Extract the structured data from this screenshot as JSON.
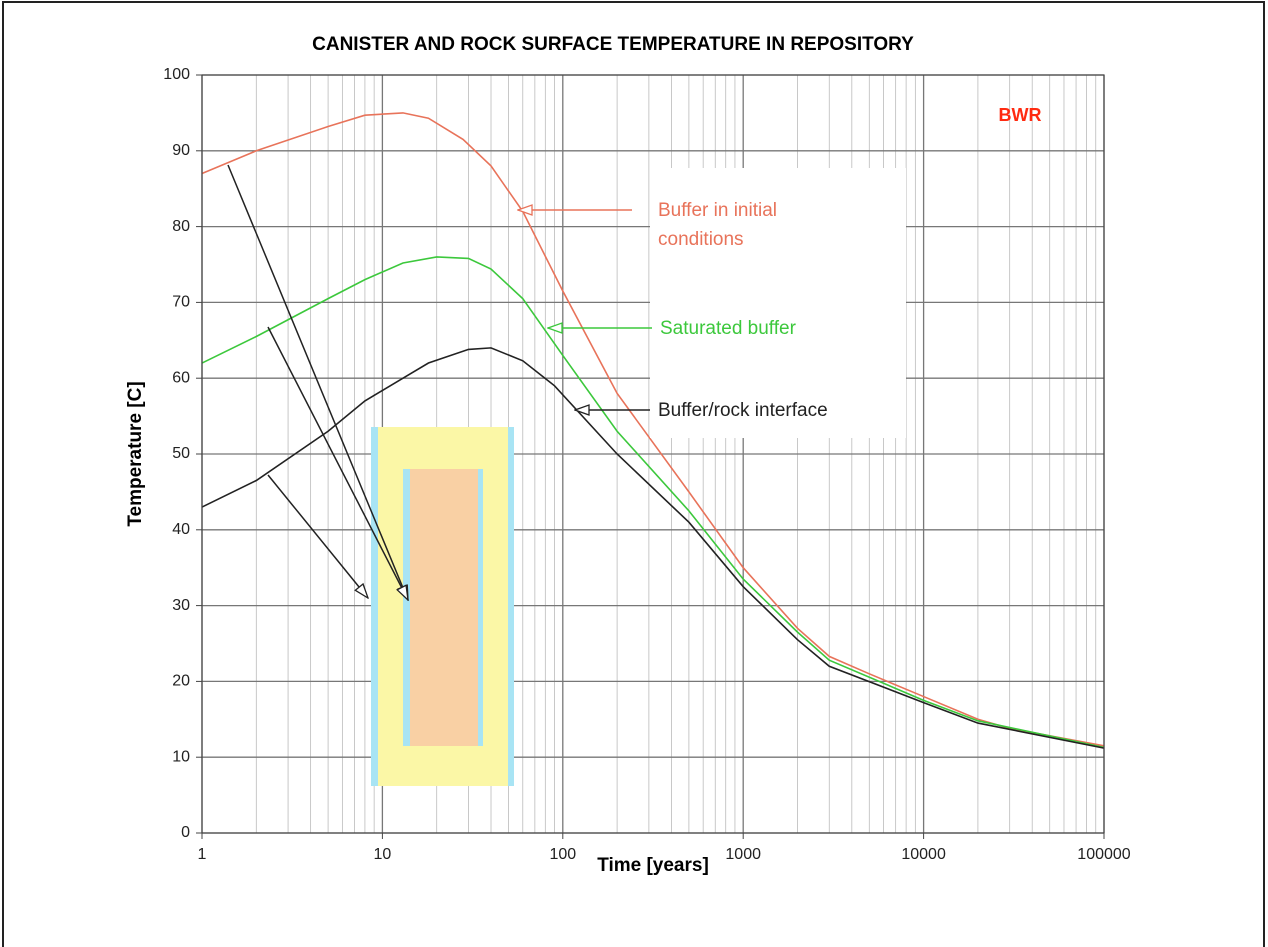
{
  "chart_data": {
    "type": "line",
    "title": "CANISTER AND ROCK SURFACE TEMPERATURE IN REPOSITORY",
    "x_label": "Time [years]",
    "y_label": "Temperature [C]",
    "log_x": true,
    "grid": true,
    "xlim": [
      1,
      100000
    ],
    "xticks": [
      1,
      10,
      100,
      1000,
      10000,
      100000
    ],
    "ylim": [
      0,
      100
    ],
    "yticks": [
      0,
      10,
      20,
      30,
      40,
      50,
      60,
      70,
      80,
      90,
      100
    ],
    "badge": {
      "text": "BWR",
      "color": "#ff2a10"
    },
    "series": [
      {
        "name": "Buffer in initial conditions",
        "color": "#e8735a",
        "x": [
          1,
          2,
          5,
          8,
          13,
          18,
          28,
          40,
          60,
          100,
          200,
          500,
          1000,
          2000,
          3000,
          5000,
          10000,
          20000,
          30000,
          100000
        ],
        "values": [
          87,
          90,
          93.2,
          94.7,
          95,
          94.3,
          91.5,
          88,
          82,
          71.5,
          58,
          45,
          35,
          27,
          23.3,
          21,
          18,
          15,
          13.8,
          11.5
        ]
      },
      {
        "name": "Saturated buffer",
        "color": "#3cc83c",
        "x": [
          1,
          2,
          5,
          8,
          13,
          20,
          30,
          40,
          60,
          100,
          200,
          500,
          1000,
          2000,
          3000,
          10000,
          20000,
          100000
        ],
        "values": [
          62,
          65.5,
          70.5,
          73,
          75.2,
          76,
          75.8,
          74.4,
          70.5,
          63,
          53,
          42.5,
          33.5,
          26.5,
          22.8,
          17.5,
          14.8,
          11.3
        ]
      },
      {
        "name": "Buffer/rock interface",
        "color": "#222222",
        "x": [
          1,
          2,
          5,
          8,
          13,
          18,
          30,
          40,
          60,
          90,
          200,
          500,
          1000,
          2000,
          3000,
          10000,
          20000,
          100000
        ],
        "values": [
          43,
          46.5,
          53,
          57,
          60,
          62,
          63.8,
          64,
          62.3,
          59,
          50,
          41,
          32.5,
          25.5,
          22,
          17.2,
          14.5,
          11.2
        ]
      }
    ]
  }
}
